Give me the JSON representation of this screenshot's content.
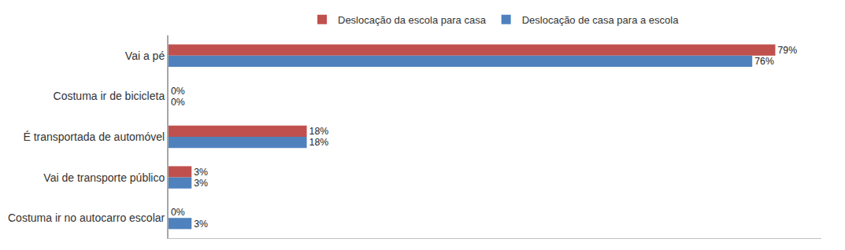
{
  "chart_data": {
    "type": "bar",
    "orientation": "horizontal",
    "categories": [
      "Vai a pé",
      "Costuma ir de bicicleta",
      "É transportada de automóvel",
      "Vai de transporte público",
      "Costuma ir no autocarro escolar"
    ],
    "series": [
      {
        "name": "Deslocação da escola para casa",
        "color": "#c0504d",
        "values": [
          79,
          0,
          18,
          3,
          0
        ],
        "value_labels": [
          "79%",
          "0%",
          "18%",
          "3%",
          "0%"
        ]
      },
      {
        "name": "Deslocação de casa para a escola",
        "color": "#4f81bd",
        "values": [
          76,
          0,
          18,
          3,
          3
        ],
        "value_labels": [
          "76%",
          "0%",
          "18%",
          "3%",
          "3%"
        ]
      }
    ],
    "xlim": [
      0,
      85
    ],
    "data_labels": true,
    "tick_labels": "y",
    "legend": "top",
    "grid": false
  }
}
